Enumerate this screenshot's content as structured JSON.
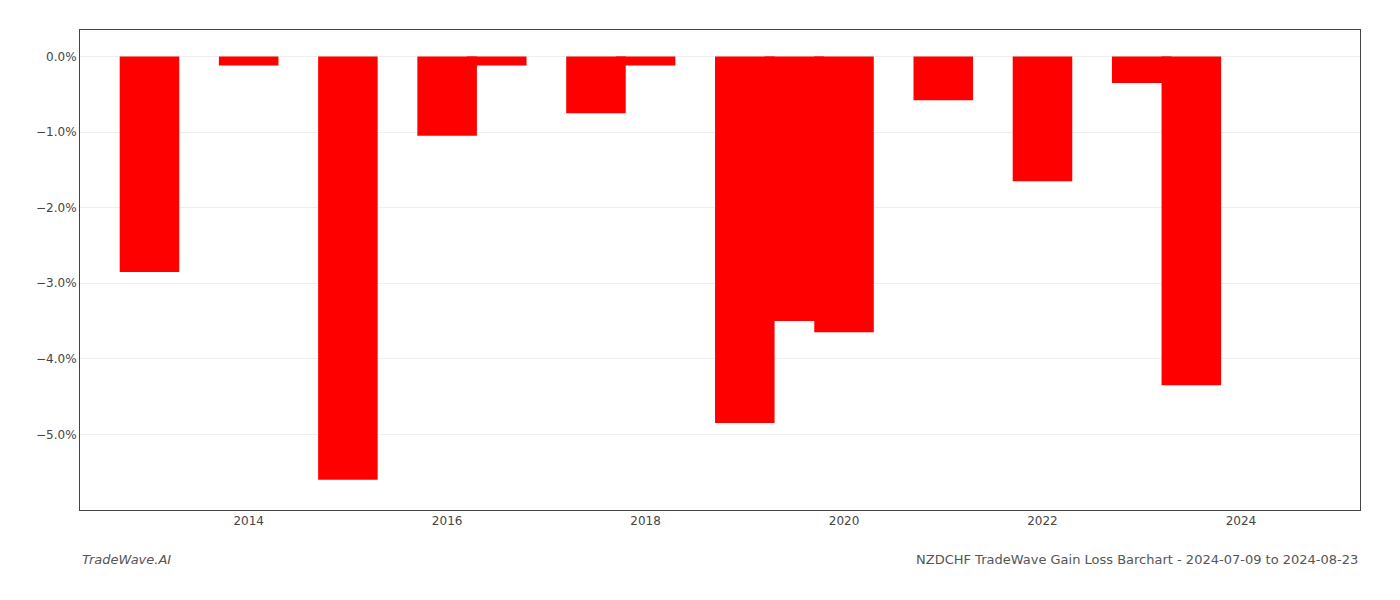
{
  "chart_data": {
    "type": "bar",
    "title": "NZDCHF TradeWave Gain Loss Barchart - 2024-07-09 to 2024-08-23",
    "annotations": [
      "TradeWave.AI"
    ],
    "x": [
      2013,
      2014,
      2015,
      2016,
      2016.5,
      2017.5,
      2018,
      2019,
      2019.5,
      2020,
      2021,
      2022,
      2023,
      2023.5
    ],
    "values": [
      -2.85,
      -0.12,
      -5.6,
      -1.05,
      -0.12,
      -0.75,
      -0.12,
      -4.85,
      -3.5,
      -3.65,
      -0.58,
      -1.65,
      -0.35,
      -4.35
    ],
    "color": "#ff0000",
    "xlim": [
      2012.3,
      2025.2
    ],
    "xticks": [
      2014,
      2016,
      2018,
      2020,
      2022,
      2024
    ],
    "ylim": [
      -6.0,
      0.35
    ],
    "yticks": [
      {
        "value": 0.0,
        "label": "0.0%"
      },
      {
        "value": -1.0,
        "label": "−1.0%"
      },
      {
        "value": -2.0,
        "label": "−2.0%"
      },
      {
        "value": -3.0,
        "label": "−3.0%"
      },
      {
        "value": -4.0,
        "label": "−4.0%"
      },
      {
        "value": -5.0,
        "label": "−5.0%"
      }
    ],
    "grid": true
  }
}
